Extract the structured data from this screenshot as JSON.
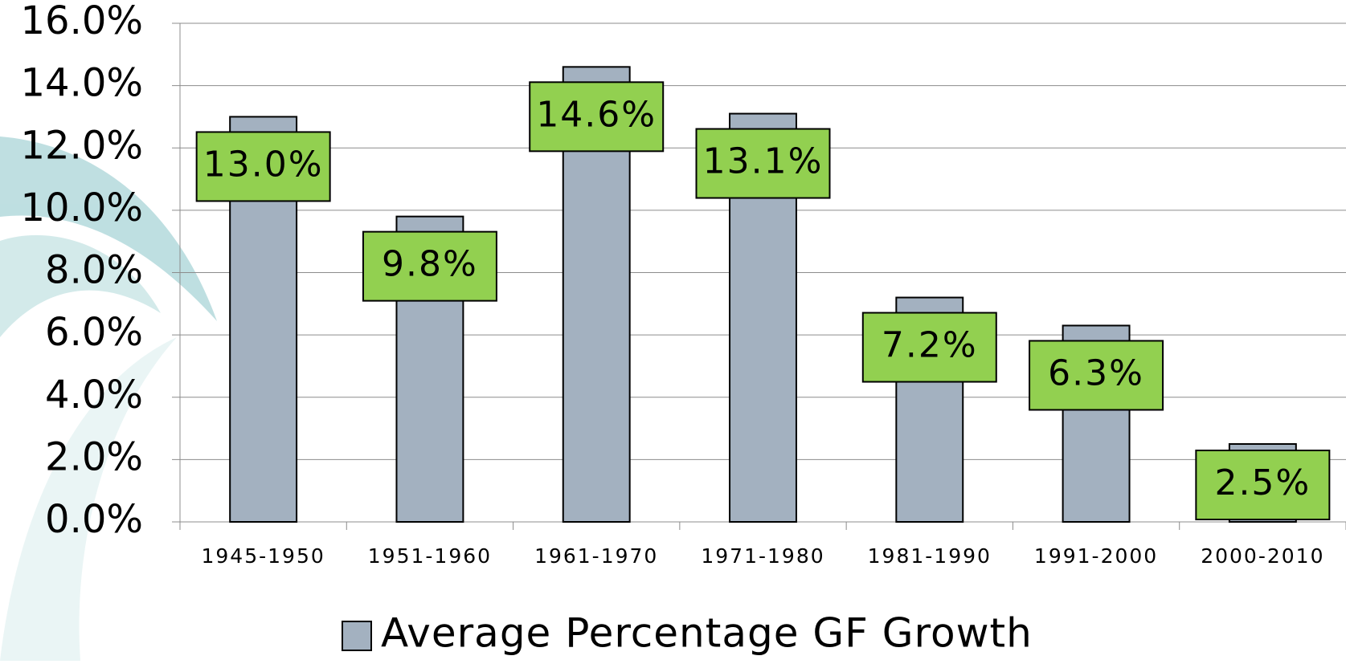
{
  "chart_data": {
    "type": "bar",
    "categories": [
      "1945-1950",
      "1951-1960",
      "1961-1970",
      "1971-1980",
      "1981-1990",
      "1991-2000",
      "2000-2010"
    ],
    "series": [
      {
        "name": "Average Percentage GF Growth",
        "color": "#a3b1c0",
        "values": [
          13.0,
          9.8,
          14.6,
          13.1,
          7.2,
          6.3,
          2.5
        ],
        "value_labels": [
          "13.0%",
          "9.8%",
          "14.6%",
          "13.1%",
          "7.2%",
          "6.3%",
          "2.5%"
        ]
      }
    ],
    "ylim": [
      0,
      16
    ],
    "yticks": [
      {
        "value": 0,
        "label": "0.0%"
      },
      {
        "value": 2,
        "label": "2.0%"
      },
      {
        "value": 4,
        "label": "4.0%"
      },
      {
        "value": 6,
        "label": "6.0%"
      },
      {
        "value": 8,
        "label": "8.0%"
      },
      {
        "value": 10,
        "label": "10.0%"
      },
      {
        "value": 12,
        "label": "12.0%"
      },
      {
        "value": 14,
        "label": "14.0%"
      },
      {
        "value": 16,
        "label": "16.0%"
      }
    ],
    "grid": true,
    "label_color": "#92d050",
    "legend": "bottom"
  }
}
